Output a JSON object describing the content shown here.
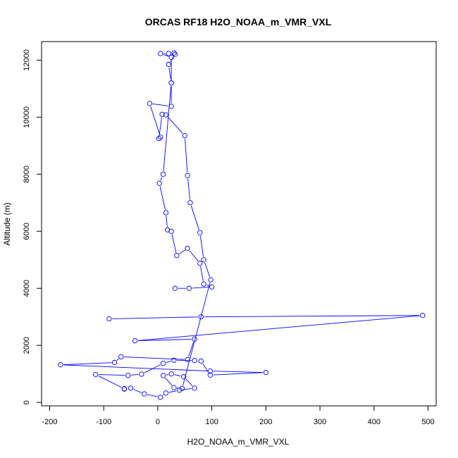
{
  "chart_data": {
    "type": "line",
    "title": "ORCAS RF18 H2O_NOAA_m_VMR_VXL",
    "xlabel": "H2O_NOAA_m_VMR_VXL",
    "ylabel": "Altitude (m)",
    "xlim": [
      -215,
      515
    ],
    "ylim": [
      -120,
      12650
    ],
    "xticks": [
      -200,
      -100,
      0,
      100,
      200,
      300,
      400,
      500
    ],
    "yticks": [
      0,
      2000,
      4000,
      6000,
      8000,
      10000,
      12000
    ],
    "grid": false,
    "series_color": "#0000ff",
    "marker": "open-circle",
    "x": [
      -90,
      80,
      490,
      -42,
      68,
      55,
      -68,
      -80,
      -180,
      97,
      200,
      97,
      80,
      68,
      30,
      10,
      -30,
      -55,
      -115,
      -62,
      -62,
      -50,
      -25,
      5,
      15,
      40,
      68,
      48,
      25,
      10,
      30,
      45,
      98,
      85,
      78,
      60,
      55,
      50,
      15,
      8,
      2,
      5,
      -15,
      25,
      25,
      20,
      32,
      30,
      20,
      5,
      25,
      25,
      10,
      3,
      15,
      18,
      25,
      35,
      55,
      78,
      85,
      100,
      58,
      32
    ],
    "y": [
      2930,
      3000,
      3050,
      2160,
      2220,
      1500,
      1600,
      1400,
      1320,
      1100,
      1050,
      960,
      1450,
      1470,
      1480,
      1370,
      990,
      950,
      980,
      480,
      470,
      500,
      300,
      180,
      330,
      430,
      500,
      900,
      1000,
      940,
      520,
      490,
      4300,
      5000,
      5950,
      7000,
      7950,
      9350,
      10080,
      10100,
      9250,
      9300,
      10480,
      10380,
      11200,
      11850,
      12200,
      12250,
      12230,
      12230,
      12100,
      11200,
      8000,
      7680,
      6650,
      6050,
      6000,
      5150,
      5400,
      4880,
      4150,
      4050,
      4000,
      4000
    ],
    "note": ""
  }
}
